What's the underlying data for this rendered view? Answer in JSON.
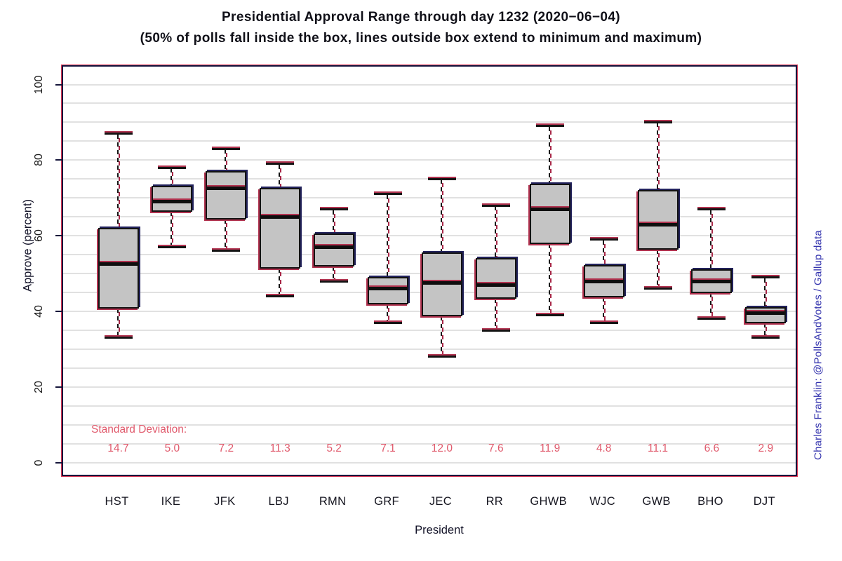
{
  "chart_data": {
    "type": "boxplot",
    "title": "Presidential Approval Range through day 1232 (2020−06−04)",
    "subtitle": "(50% of polls fall inside the box, lines outside box extend to minimum and maximum)",
    "xlabel": "President",
    "ylabel": "Approve (percent)",
    "credit": "Charles Franklin: @PollsAndVotes / Gallup data",
    "ylim": [
      0,
      100
    ],
    "yticks": [
      0,
      20,
      40,
      60,
      80,
      100
    ],
    "grid_step": 5,
    "grid": true,
    "legend_position": "none",
    "sd_label": "Standard Deviation:",
    "categories": [
      "HST",
      "IKE",
      "JFK",
      "LBJ",
      "RMN",
      "GRF",
      "JEC",
      "RR",
      "GHWB",
      "WJC",
      "GWB",
      "BHO",
      "DJT"
    ],
    "series": [
      {
        "name": "HST",
        "min": 33,
        "q1": 41,
        "median": 52.5,
        "q3": 62,
        "max": 87,
        "sd": "14.7"
      },
      {
        "name": "IKE",
        "min": 57,
        "q1": 66.5,
        "median": 69,
        "q3": 73,
        "max": 78,
        "sd": "5.0"
      },
      {
        "name": "JFK",
        "min": 56,
        "q1": 64.5,
        "median": 72.5,
        "q3": 77,
        "max": 83,
        "sd": "7.2"
      },
      {
        "name": "LBJ",
        "min": 44,
        "q1": 51.5,
        "median": 65,
        "q3": 72.5,
        "max": 79,
        "sd": "11.3"
      },
      {
        "name": "RMN",
        "min": 48,
        "q1": 52,
        "median": 57,
        "q3": 60.5,
        "max": 67,
        "sd": "5.2"
      },
      {
        "name": "GRF",
        "min": 37,
        "q1": 42,
        "median": 46,
        "q3": 49,
        "max": 71,
        "sd": "7.1"
      },
      {
        "name": "JEC",
        "min": 28,
        "q1": 39,
        "median": 47.5,
        "q3": 55.5,
        "max": 75,
        "sd": "12.0"
      },
      {
        "name": "RR",
        "min": 35,
        "q1": 43.5,
        "median": 47,
        "q3": 54,
        "max": 68,
        "sd": "7.6"
      },
      {
        "name": "GHWB",
        "min": 39,
        "q1": 58,
        "median": 67,
        "q3": 73.5,
        "max": 89,
        "sd": "11.9"
      },
      {
        "name": "WJC",
        "min": 37,
        "q1": 44,
        "median": 48,
        "q3": 52,
        "max": 59,
        "sd": "4.8"
      },
      {
        "name": "GWB",
        "min": 46,
        "q1": 56.5,
        "median": 63,
        "q3": 72,
        "max": 90,
        "sd": "11.1"
      },
      {
        "name": "BHO",
        "min": 38,
        "q1": 45,
        "median": 48,
        "q3": 51,
        "max": 67,
        "sd": "6.6"
      },
      {
        "name": "DJT",
        "min": 33,
        "q1": 37,
        "median": 39.5,
        "q3": 41,
        "max": 49,
        "sd": "2.9"
      }
    ],
    "colors": {
      "box_fill": "#c4c4c4",
      "box_border": "#131313",
      "accent_red": "#b23350",
      "accent_navy": "#22225c",
      "frame_red": "#d93a56",
      "frame_navy": "#14143c",
      "sd_text": "#e05a6c",
      "credit_text": "#3434ae",
      "gridline": "#e1e1e1"
    }
  }
}
